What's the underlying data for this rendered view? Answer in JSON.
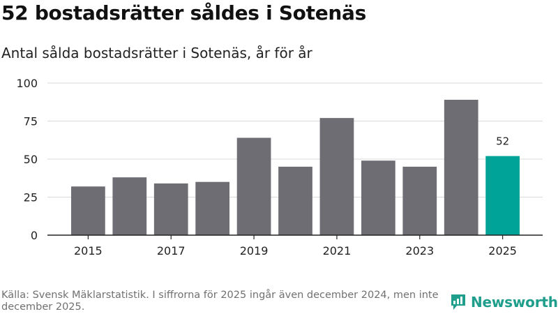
{
  "header": {
    "title": "52 bostadsrätter såldes i Sotenäs",
    "subtitle": "Antal sålda bostadsrätter i Sotenäs, år för år"
  },
  "chart_data": {
    "type": "bar",
    "title": "52 bostadsrätter såldes i Sotenäs",
    "subtitle": "Antal sålda bostadsrätter i Sotenäs, år för år",
    "xlabel": "",
    "ylabel": "",
    "categories": [
      "2015",
      "2016",
      "2017",
      "2018",
      "2019",
      "2020",
      "2021",
      "2022",
      "2023",
      "2024",
      "2025"
    ],
    "values": [
      32,
      38,
      34,
      35,
      64,
      45,
      77,
      49,
      45,
      89,
      52
    ],
    "x_tick_labels": [
      "2015",
      "2017",
      "2019",
      "2021",
      "2023",
      "2025"
    ],
    "y_ticks": [
      0,
      25,
      50,
      75,
      100
    ],
    "ylim": [
      0,
      100
    ],
    "grid": true,
    "bar_color": "#6e6d73",
    "highlight_color": "#00a397",
    "highlight_category": "2025",
    "annotations": [
      {
        "category": "2025",
        "label": "52"
      }
    ]
  },
  "footer": {
    "source": "Källa: Svensk Mäklarstatistik. I siffrorna för 2025 ingår även december 2024, men inte december 2025."
  },
  "brand": {
    "name": "Newsworthy",
    "icon": "newsworthy-logo-icon",
    "color": "#1f9e8c"
  }
}
